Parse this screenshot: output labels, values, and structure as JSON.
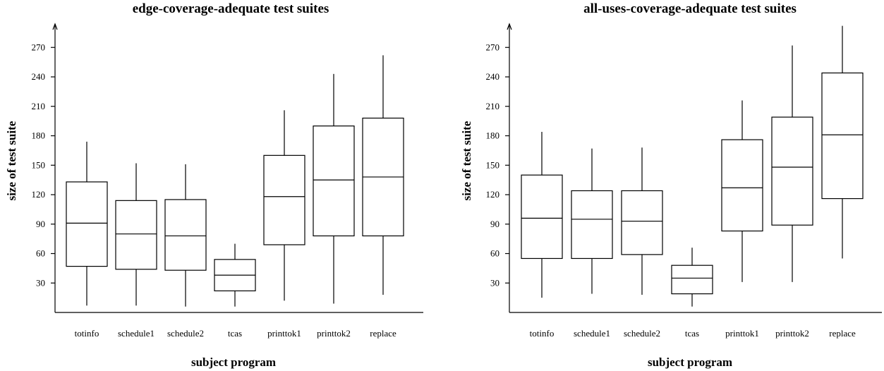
{
  "chart_data": [
    {
      "type": "boxplot",
      "title": "edge-coverage-adequate test suites",
      "xlabel": "subject program",
      "ylabel": "size of test suite",
      "yticks": [
        30,
        60,
        90,
        120,
        150,
        180,
        210,
        240,
        270
      ],
      "categories": [
        "totinfo",
        "schedule1",
        "schedule2",
        "tcas",
        "printtok1",
        "printtok2",
        "replace"
      ],
      "boxes": [
        {
          "min": 7,
          "q1": 47,
          "median": 91,
          "q3": 133,
          "max": 174
        },
        {
          "min": 7,
          "q1": 44,
          "median": 80,
          "q3": 114,
          "max": 152
        },
        {
          "min": 6,
          "q1": 43,
          "median": 78,
          "q3": 115,
          "max": 151
        },
        {
          "min": 6,
          "q1": 22,
          "median": 38,
          "q3": 54,
          "max": 70
        },
        {
          "min": 12,
          "q1": 69,
          "median": 118,
          "q3": 160,
          "max": 206
        },
        {
          "min": 9,
          "q1": 78,
          "median": 135,
          "q3": 190,
          "max": 243
        },
        {
          "min": 18,
          "q1": 78,
          "median": 138,
          "q3": 198,
          "max": 262
        }
      ]
    },
    {
      "type": "boxplot",
      "title": "all-uses-coverage-adequate test suites",
      "xlabel": "subject program",
      "ylabel": "size of test suite",
      "yticks": [
        30,
        60,
        90,
        120,
        150,
        180,
        210,
        240,
        270
      ],
      "categories": [
        "totinfo",
        "schedule1",
        "schedule2",
        "tcas",
        "printtok1",
        "printtok2",
        "replace"
      ],
      "boxes": [
        {
          "min": 15,
          "q1": 55,
          "median": 96,
          "q3": 140,
          "max": 184
        },
        {
          "min": 19,
          "q1": 55,
          "median": 95,
          "q3": 124,
          "max": 167
        },
        {
          "min": 18,
          "q1": 59,
          "median": 93,
          "q3": 124,
          "max": 168
        },
        {
          "min": 6,
          "q1": 19,
          "median": 35,
          "q3": 48,
          "max": 66
        },
        {
          "min": 31,
          "q1": 83,
          "median": 127,
          "q3": 176,
          "max": 216
        },
        {
          "min": 31,
          "q1": 89,
          "median": 148,
          "q3": 199,
          "max": 272
        },
        {
          "min": 55,
          "q1": 116,
          "median": 181,
          "q3": 244,
          "max": 292
        }
      ]
    }
  ]
}
